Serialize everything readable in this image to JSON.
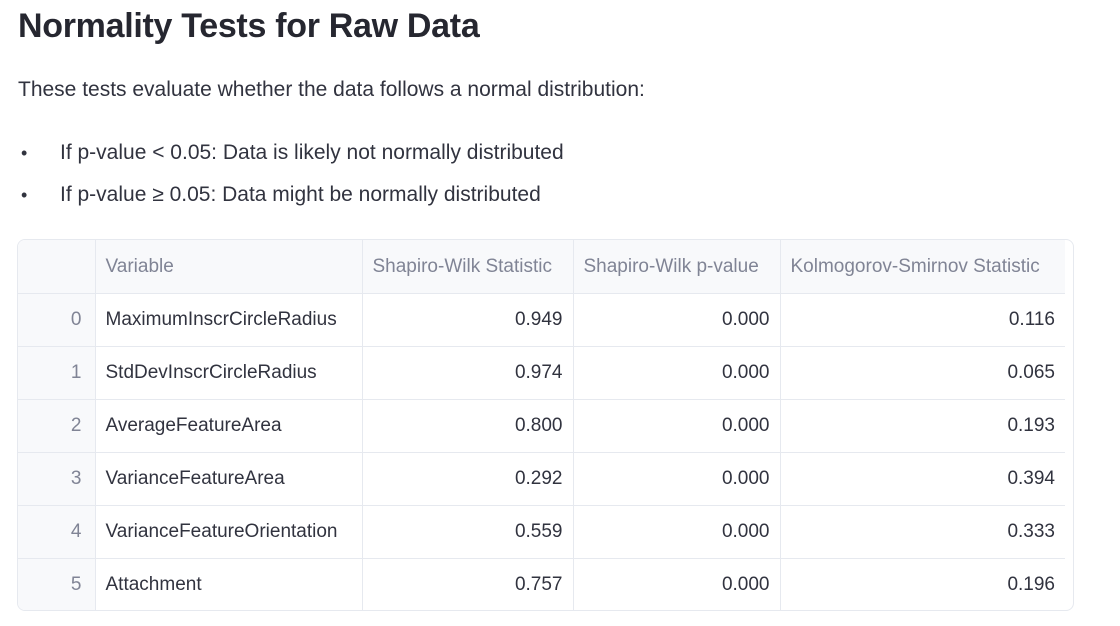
{
  "page": {
    "title": "Normality Tests for Raw Data",
    "intro": "These tests evaluate whether the data follows a normal distribution:",
    "rules": [
      {
        "bullet": "•",
        "text": "If p-value < 0.05: Data is likely not normally distributed"
      },
      {
        "bullet": "•",
        "text": "If p-value ≥ 0.05: Data might be normally distributed"
      }
    ]
  },
  "table": {
    "headers": {
      "index": "",
      "variable": "Variable",
      "sw_stat": "Shapiro-Wilk Statistic",
      "sw_p": "Shapiro-Wilk p-value",
      "ks_stat": "Kolmogorov-Smirnov Statistic"
    },
    "rows": [
      {
        "index": "0",
        "variable": "MaximumInscrCircleRadius",
        "sw_stat": "0.949",
        "sw_p": "0.000",
        "ks_stat": "0.116"
      },
      {
        "index": "1",
        "variable": "StdDevInscrCircleRadius",
        "sw_stat": "0.974",
        "sw_p": "0.000",
        "ks_stat": "0.065"
      },
      {
        "index": "2",
        "variable": "AverageFeatureArea",
        "sw_stat": "0.800",
        "sw_p": "0.000",
        "ks_stat": "0.193"
      },
      {
        "index": "3",
        "variable": "VarianceFeatureArea",
        "sw_stat": "0.292",
        "sw_p": "0.000",
        "ks_stat": "0.394"
      },
      {
        "index": "4",
        "variable": "VarianceFeatureOrientation",
        "sw_stat": "0.559",
        "sw_p": "0.000",
        "ks_stat": "0.333"
      },
      {
        "index": "5",
        "variable": "Attachment",
        "sw_stat": "0.757",
        "sw_p": "0.000",
        "ks_stat": "0.196"
      }
    ]
  }
}
